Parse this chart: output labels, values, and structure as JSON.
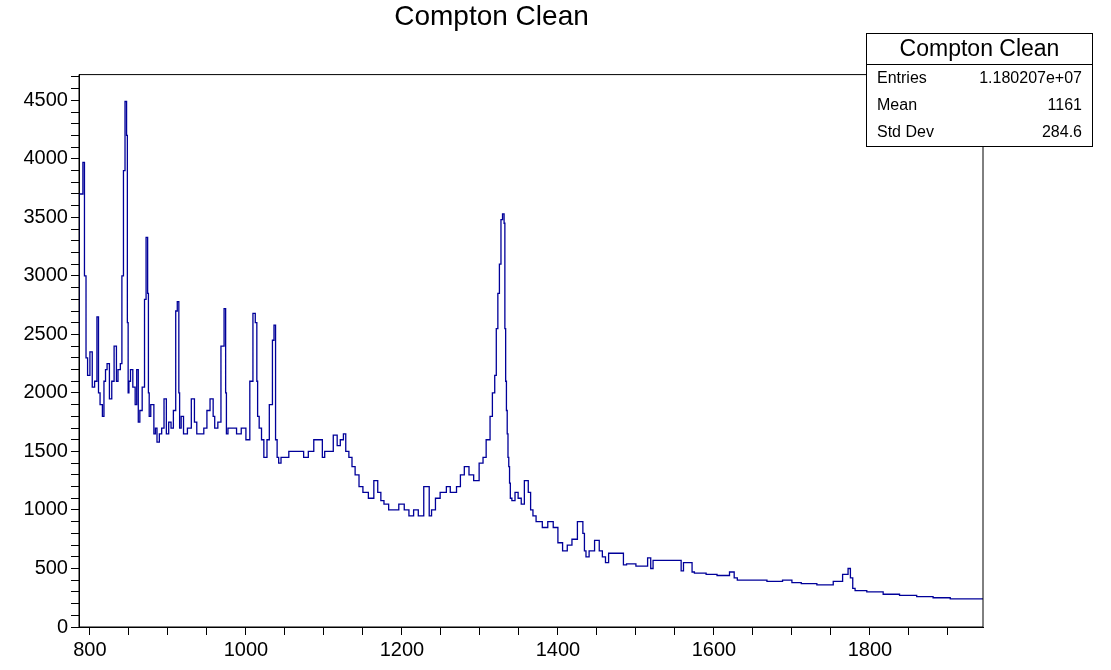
{
  "chart_data": {
    "type": "step",
    "title": "Compton Clean",
    "color": "#000099",
    "x": [
      786,
      791,
      793,
      795,
      797,
      800,
      803,
      806,
      809,
      811,
      813,
      816,
      818,
      820,
      822,
      825,
      828,
      831,
      834,
      836,
      839,
      841,
      843,
      845,
      847,
      848,
      849,
      850,
      852,
      855,
      858,
      860,
      862,
      864,
      867,
      870,
      872,
      874,
      875,
      876,
      878,
      882,
      884,
      886,
      889,
      892,
      895,
      898,
      901,
      904,
      907,
      910,
      912,
      914,
      915,
      917,
      920,
      925,
      930,
      934,
      937,
      946,
      950,
      954,
      958,
      960,
      964,
      968,
      972,
      974,
      975,
      977,
      988,
      994,
      1000,
      1005,
      1009,
      1012,
      1014,
      1015,
      1017,
      1020,
      1023,
      1027,
      1030,
      1034,
      1036,
      1038,
      1040,
      1042,
      1045,
      1055,
      1074,
      1080,
      1087,
      1098,
      1101,
      1112,
      1117,
      1121,
      1125,
      1128,
      1132,
      1136,
      1140,
      1145,
      1150,
      1157,
      1164,
      1169,
      1173,
      1177,
      1183,
      1196,
      1203,
      1209,
      1215,
      1221,
      1228,
      1235,
      1238,
      1243,
      1249,
      1257,
      1262,
      1270,
      1275,
      1280,
      1286,
      1292,
      1299,
      1304,
      1308,
      1313,
      1316,
      1319,
      1321,
      1323,
      1325,
      1327,
      1329,
      1331,
      1332,
      1333,
      1334,
      1335,
      1336,
      1337,
      1338,
      1339,
      1341,
      1345,
      1349,
      1353,
      1357,
      1362,
      1365,
      1368,
      1372,
      1380,
      1387,
      1394,
      1400,
      1406,
      1412,
      1418,
      1425,
      1432,
      1434,
      1436,
      1440,
      1447,
      1453,
      1457,
      1461,
      1465,
      1484,
      1488,
      1500,
      1515,
      1519,
      1522,
      1558,
      1561,
      1572,
      1575,
      1590,
      1604,
      1620,
      1626,
      1630,
      1668,
      1688,
      1700,
      1712,
      1732,
      1753,
      1765,
      1772,
      1775,
      1778,
      1781,
      1796,
      1817,
      1838,
      1860,
      1881,
      1903,
      1924,
      1945
    ],
    "values": [
      2500,
      3700,
      3970,
      3000,
      2300,
      2150,
      2350,
      2050,
      2100,
      2650,
      2000,
      1900,
      1800,
      2100,
      2200,
      2250,
      1950,
      2100,
      2400,
      2100,
      2200,
      2250,
      3000,
      3900,
      4490,
      4200,
      2600,
      2000,
      2100,
      2200,
      2050,
      1900,
      2200,
      1750,
      1850,
      2050,
      2800,
      3330,
      2850,
      2000,
      1800,
      1900,
      1650,
      1700,
      1580,
      1650,
      1700,
      1950,
      1650,
      1750,
      1700,
      1850,
      2700,
      2780,
      2000,
      1700,
      1800,
      1650,
      1700,
      1950,
      1750,
      1650,
      1700,
      1850,
      1950,
      1800,
      1700,
      1750,
      2400,
      2720,
      2000,
      1650,
      1700,
      1650,
      1700,
      1600,
      2100,
      2680,
      2600,
      2100,
      1800,
      1700,
      1600,
      1450,
      1600,
      1900,
      2450,
      2580,
      1600,
      1450,
      1400,
      1450,
      1500,
      1450,
      1500,
      1600,
      1450,
      1500,
      1640,
      1550,
      1600,
      1650,
      1500,
      1450,
      1370,
      1300,
      1200,
      1150,
      1100,
      1250,
      1150,
      1080,
      1050,
      1000,
      1050,
      1000,
      950,
      1000,
      950,
      1200,
      950,
      1000,
      1100,
      1150,
      1200,
      1150,
      1200,
      1300,
      1370,
      1300,
      1250,
      1400,
      1450,
      1600,
      1800,
      2000,
      2150,
      2550,
      2850,
      3100,
      3480,
      3530,
      3450,
      2550,
      2100,
      1850,
      1650,
      1450,
      1370,
      1230,
      1100,
      1080,
      1150,
      1100,
      1050,
      1250,
      1150,
      1000,
      950,
      900,
      850,
      900,
      850,
      720,
      650,
      700,
      750,
      900,
      800,
      650,
      600,
      650,
      740,
      650,
      600,
      550,
      630,
      530,
      540,
      520,
      590,
      500,
      570,
      480,
      550,
      470,
      460,
      450,
      440,
      470,
      420,
      400,
      390,
      400,
      380,
      370,
      360,
      390,
      450,
      500,
      420,
      330,
      310,
      300,
      280,
      270,
      260,
      250,
      240,
      240
    ],
    "xlim": [
      786,
      1945
    ],
    "xticks": [
      800,
      {
        "value": 850,
        "label": null
      },
      {
        "value": 900,
        "label": null
      },
      {
        "value": 950,
        "label": null
      },
      1000,
      {
        "value": 1050,
        "label": null
      },
      {
        "value": 1100,
        "label": null
      },
      {
        "value": 1150,
        "label": null
      },
      1200,
      {
        "value": 1250,
        "label": null
      },
      {
        "value": 1300,
        "label": null
      },
      {
        "value": 1350,
        "label": null
      },
      1400,
      {
        "value": 1450,
        "label": null
      },
      {
        "value": 1500,
        "label": null
      },
      {
        "value": 1550,
        "label": null
      },
      1600,
      {
        "value": 1650,
        "label": null
      },
      {
        "value": 1700,
        "label": null
      },
      {
        "value": 1750,
        "label": null
      },
      1800,
      {
        "value": 1850,
        "label": null
      },
      {
        "value": 1900,
        "label": null
      }
    ],
    "ylim": [
      0,
      4720
    ],
    "yticks": [
      0,
      {
        "value": 100,
        "label": null
      },
      {
        "value": 200,
        "label": null
      },
      {
        "value": 300,
        "label": null
      },
      {
        "value": 400,
        "label": null
      },
      500,
      {
        "value": 600,
        "label": null
      },
      {
        "value": 700,
        "label": null
      },
      {
        "value": 800,
        "label": null
      },
      {
        "value": 900,
        "label": null
      },
      1000,
      {
        "value": 1100,
        "label": null
      },
      {
        "value": 1200,
        "label": null
      },
      {
        "value": 1300,
        "label": null
      },
      {
        "value": 1400,
        "label": null
      },
      1500,
      {
        "value": 1600,
        "label": null
      },
      {
        "value": 1700,
        "label": null
      },
      {
        "value": 1800,
        "label": null
      },
      {
        "value": 1900,
        "label": null
      },
      2000,
      {
        "value": 2100,
        "label": null
      },
      {
        "value": 2200,
        "label": null
      },
      {
        "value": 2300,
        "label": null
      },
      {
        "value": 2400,
        "label": null
      },
      2500,
      {
        "value": 2600,
        "label": null
      },
      {
        "value": 2700,
        "label": null
      },
      {
        "value": 2800,
        "label": null
      },
      {
        "value": 2900,
        "label": null
      },
      3000,
      {
        "value": 3100,
        "label": null
      },
      {
        "value": 3200,
        "label": null
      },
      {
        "value": 3300,
        "label": null
      },
      {
        "value": 3400,
        "label": null
      },
      3500,
      {
        "value": 3600,
        "label": null
      },
      {
        "value": 3700,
        "label": null
      },
      {
        "value": 3800,
        "label": null
      },
      {
        "value": 3900,
        "label": null
      },
      4000,
      {
        "value": 4100,
        "label": null
      },
      {
        "value": 4200,
        "label": null
      },
      {
        "value": 4300,
        "label": null
      },
      {
        "value": 4400,
        "label": null
      },
      4500,
      {
        "value": 4600,
        "label": null
      },
      {
        "value": 4700,
        "label": null
      }
    ],
    "grid": false,
    "annotations": [
      "Compton Clean",
      "Entries",
      "1.180207e+07",
      "Mean",
      "1161",
      "Std Dev",
      "284.6"
    ]
  }
}
